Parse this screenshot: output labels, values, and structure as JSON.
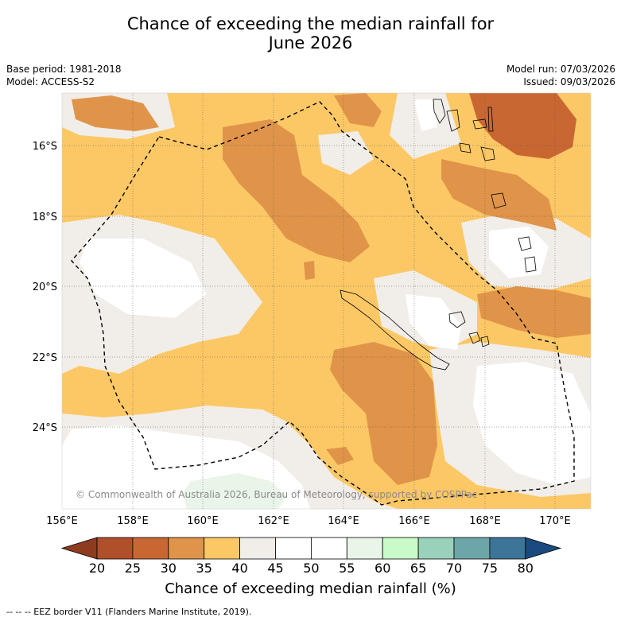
{
  "title_line1": "Chance of exceeding the median rainfall for",
  "title_line2": "June 2026",
  "base_period": "Base period: 1981-2018",
  "model": "Model: ACCESS-S2",
  "model_run": "Model run: 07/03/2026",
  "issued": "Issued: 09/03/2026",
  "copyright": "© Commonwealth of Australia 2026, Bureau of Meteorology, supported by COSPPac",
  "colorbar_title": "Chance of exceeding median rainfall (%)",
  "footnote": "--  --  -- EEZ border V11 (Flanders Marine Institute, 2019).",
  "lon_ticks": [
    "156°E",
    "158°E",
    "160°E",
    "162°E",
    "164°E",
    "166°E",
    "168°E",
    "170°E"
  ],
  "lat_ticks": [
    "16°S",
    "18°S",
    "20°S",
    "22°S",
    "24°S"
  ],
  "colorbar": {
    "labels": [
      "20",
      "25",
      "30",
      "35",
      "40",
      "45",
      "50",
      "55",
      "60",
      "65",
      "70",
      "75",
      "80"
    ],
    "colors": [
      "#8e3b20",
      "#b0502a",
      "#c96732",
      "#e09449",
      "#fcc866",
      "#f1ede8",
      "#ffffff",
      "#ffffff",
      "#e9f5e8",
      "#c9fbc9",
      "#9ad1bb",
      "#6da6a8",
      "#3c7597",
      "#1a4a80"
    ]
  },
  "legend": {
    "c20_25": "#b0502a",
    "c25_30": "#c96732",
    "c30_35": "#e09449",
    "c35_40": "#fcc866",
    "c40_50": "#f1ede8",
    "c50_60": "#ffffff",
    "c60_65": "#e9f5e8"
  }
}
